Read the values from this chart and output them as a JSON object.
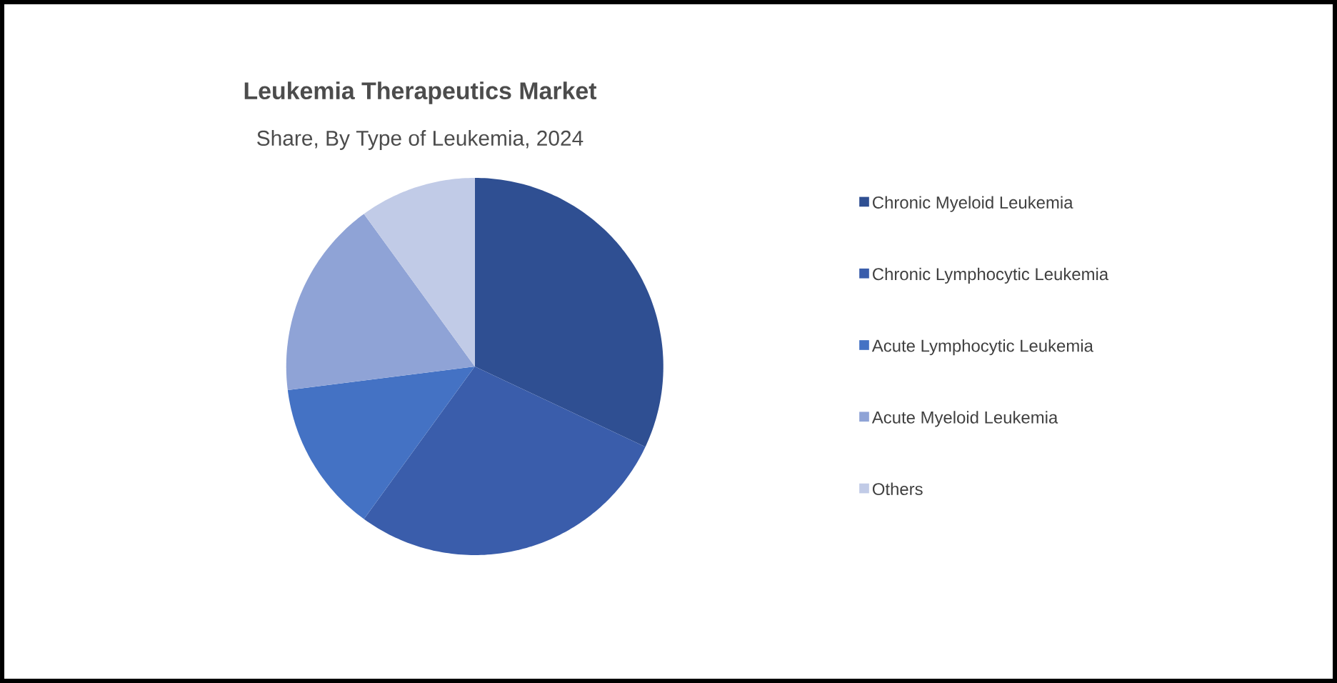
{
  "chart_data": {
    "type": "pie",
    "title": "Leukemia Therapeutics Market",
    "subtitle": "Share, By Type of Leukemia, 2024",
    "categories": [
      "Chronic Myeloid Leukemia",
      "Chronic Lymphocytic Leukemia",
      "Acute Lymphocytic Leukemia",
      "Acute Myeloid Leukemia",
      "Others"
    ],
    "values": [
      32,
      28,
      13,
      17,
      10
    ],
    "colors": [
      "#2f4f92",
      "#3a5dab",
      "#4472c4",
      "#8fa3d6",
      "#c1cbe7"
    ],
    "legend": "right"
  }
}
